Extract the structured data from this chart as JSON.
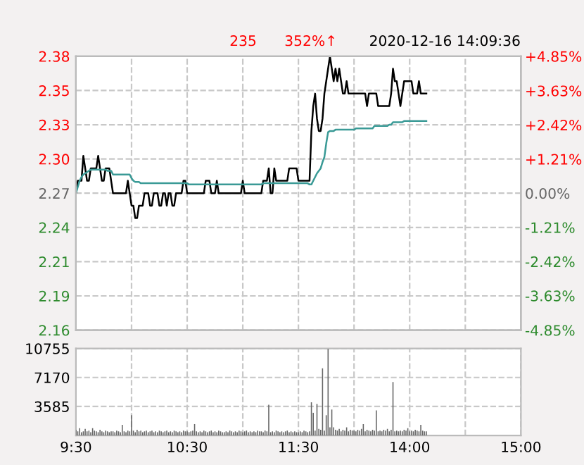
{
  "chart_data": [
    {
      "type": "line",
      "annotations": [
        "235",
        "352%↑",
        "2020-12-16 14:09:36"
      ],
      "categories": [
        null,
        null,
        null,
        null,
        null,
        null,
        null,
        null,
        null,
        null,
        null,
        null,
        null,
        null,
        null,
        null,
        null,
        null,
        null,
        null,
        null,
        null,
        null,
        null,
        null,
        null,
        null,
        null,
        null,
        null,
        null,
        null,
        null,
        null,
        null,
        null,
        null,
        null,
        null,
        null,
        null,
        null,
        null,
        null,
        null,
        null,
        null,
        null,
        null,
        null,
        null,
        null,
        null,
        null,
        null,
        null,
        null,
        null,
        null,
        null,
        null,
        null,
        null,
        null,
        null,
        null,
        null,
        null,
        null,
        null,
        null,
        null,
        null,
        null,
        null,
        null,
        null,
        null,
        null,
        null,
        null,
        null,
        null,
        null,
        null,
        null,
        null,
        null,
        null,
        null,
        null,
        null,
        null,
        null,
        null,
        null,
        null,
        null,
        null,
        null,
        null,
        null,
        null,
        null,
        null,
        null,
        null,
        null,
        null,
        null,
        null,
        null,
        null,
        null,
        null,
        null,
        null,
        null,
        null,
        null,
        null,
        null,
        null,
        null,
        null,
        null,
        null,
        null,
        null,
        null,
        null,
        null,
        null,
        null,
        null,
        null,
        null,
        null,
        null,
        null,
        null,
        null,
        null,
        null,
        null,
        null,
        null,
        null,
        null,
        null,
        null,
        null,
        null,
        null,
        null,
        null,
        null,
        null,
        null,
        null,
        null,
        null,
        null,
        null,
        null,
        null,
        null,
        null,
        null,
        null,
        null,
        null,
        null,
        null,
        null,
        null,
        null,
        null,
        null,
        null,
        null,
        null,
        null,
        null,
        null,
        null,
        null,
        null,
        null,
        null,
        null,
        null,
        null,
        null,
        null,
        null,
        null,
        null,
        null,
        null,
        null,
        null,
        null,
        null,
        null,
        null,
        null,
        null,
        null,
        null,
        null,
        null,
        null,
        null,
        null,
        null,
        null,
        null,
        null,
        null,
        null,
        null,
        null,
        null,
        null,
        null,
        null,
        null,
        null,
        null,
        null,
        null,
        null,
        null,
        null,
        null,
        null,
        null,
        null,
        null,
        null
      ],
      "ylim": [
        2.16,
        2.38
      ],
      "yticks": [
        2.16,
        {
          "value": 2.1875,
          "label": "2.19"
        },
        {
          "value": 2.215,
          "label": "2.21"
        },
        {
          "value": 2.2425,
          "label": "2.24"
        },
        2.27,
        {
          "value": 2.2975,
          "label": "2.30"
        },
        {
          "value": 2.325,
          "label": "2.33"
        },
        {
          "value": 2.3525,
          "label": "2.35"
        },
        2.38
      ],
      "y2lim": [
        -4.85,
        4.85
      ],
      "y2ticks": [
        {
          "value": -4.85,
          "label": "-4.85%"
        },
        {
          "value": -3.63,
          "label": "-3.63%"
        },
        {
          "value": -2.42,
          "label": "-2.42%"
        },
        {
          "value": -1.21,
          "label": "-1.21%"
        },
        {
          "value": 0,
          "label": "0.00%"
        },
        {
          "value": 1.21,
          "label": "+1.21%"
        },
        {
          "value": 2.42,
          "label": "+2.42%"
        },
        {
          "value": 3.63,
          "label": "+3.63%"
        },
        {
          "value": 4.85,
          "label": "+4.85%"
        }
      ],
      "grid": true,
      "tick_labels": "y",
      "line_style": "solid",
      "series": [
        {
          "color": "#000000",
          "values": [
            2.27,
            2.28,
            2.28,
            2.28,
            2.3,
            2.29,
            2.28,
            2.28,
            2.29,
            2.29,
            2.29,
            2.29,
            2.3,
            2.29,
            2.28,
            2.28,
            2.29,
            2.29,
            2.29,
            2.28,
            2.27,
            2.27,
            2.27,
            2.27,
            2.27,
            2.27,
            2.27,
            2.27,
            2.28,
            2.27,
            2.26,
            2.26,
            2.25,
            2.25,
            2.26,
            2.26,
            2.26,
            2.27,
            2.27,
            2.27,
            2.26,
            2.26,
            2.27,
            2.27,
            2.27,
            2.26,
            2.26,
            2.27,
            2.27,
            2.26,
            2.27,
            2.27,
            2.26,
            2.26,
            2.27,
            2.27,
            2.27,
            2.27,
            2.28,
            2.28,
            2.27,
            2.27,
            2.27,
            2.27,
            2.27,
            2.27,
            2.27,
            2.27,
            2.27,
            2.27,
            2.28,
            2.28,
            2.28,
            2.27,
            2.27,
            2.27,
            2.28,
            2.27,
            2.27,
            2.27,
            2.27,
            2.27,
            2.27,
            2.27,
            2.27,
            2.27,
            2.27,
            2.27,
            2.27,
            2.27,
            2.28,
            2.27,
            2.27,
            2.27,
            2.27,
            2.27,
            2.27,
            2.27,
            2.27,
            2.27,
            2.27,
            2.28,
            2.28,
            2.28,
            2.29,
            2.27,
            2.27,
            2.29,
            2.28,
            2.28,
            2.28,
            2.28,
            2.28,
            2.28,
            2.28,
            2.29,
            2.29,
            2.29,
            2.29,
            2.29,
            2.28,
            2.28,
            2.28,
            2.28,
            2.28,
            2.28,
            2.28,
            2.32,
            2.34,
            2.35,
            2.33,
            2.32,
            2.32,
            2.33,
            2.35,
            2.36,
            2.37,
            2.38,
            2.37,
            2.36,
            2.37,
            2.36,
            2.37,
            2.36,
            2.35,
            2.35,
            2.36,
            2.35,
            2.35,
            2.35,
            2.35,
            2.35,
            2.35,
            2.35,
            2.35,
            2.35,
            2.35,
            2.34,
            2.35,
            2.35,
            2.35,
            2.35,
            2.35,
            2.34,
            2.34,
            2.34,
            2.34,
            2.34,
            2.34,
            2.34,
            2.35,
            2.37,
            2.36,
            2.36,
            2.35,
            2.34,
            2.35,
            2.36,
            2.36,
            2.36,
            2.36,
            2.36,
            2.35,
            2.35,
            2.35,
            2.36,
            2.35,
            2.35,
            2.35,
            2.35,
            null,
            null,
            null,
            null,
            null,
            null,
            null,
            null,
            null,
            null,
            null,
            null,
            null,
            null,
            null,
            null,
            null,
            null,
            null,
            null,
            null,
            null,
            null,
            null,
            null,
            null,
            null,
            null,
            null,
            null,
            null,
            null,
            null,
            null,
            null,
            null,
            null,
            null,
            null,
            null,
            null,
            null,
            null,
            null,
            null,
            null,
            null,
            null,
            null,
            null,
            null
          ]
        },
        {
          "color": "#3a9a96",
          "values": [
            2.27,
            2.275,
            2.28,
            2.283,
            2.285,
            2.286,
            2.287,
            2.288,
            2.289,
            2.289,
            2.289,
            2.289,
            2.289,
            2.289,
            2.289,
            2.289,
            2.289,
            2.288,
            2.288,
            2.288,
            2.285,
            2.285,
            2.285,
            2.285,
            2.285,
            2.285,
            2.285,
            2.285,
            2.285,
            2.285,
            2.282,
            2.28,
            2.279,
            2.279,
            2.279,
            2.278,
            2.278,
            2.278,
            2.278,
            2.278,
            2.278,
            2.278,
            2.278,
            2.278,
            2.278,
            2.278,
            2.278,
            2.278,
            2.278,
            2.278,
            2.278,
            2.278,
            2.278,
            2.278,
            2.278,
            2.278,
            2.278,
            2.278,
            2.278,
            2.278,
            2.278,
            2.277,
            2.277,
            2.277,
            2.277,
            2.277,
            2.277,
            2.277,
            2.277,
            2.277,
            2.277,
            2.277,
            2.277,
            2.277,
            2.277,
            2.277,
            2.277,
            2.277,
            2.277,
            2.277,
            2.277,
            2.277,
            2.277,
            2.277,
            2.277,
            2.277,
            2.277,
            2.277,
            2.277,
            2.277,
            2.277,
            2.277,
            2.277,
            2.277,
            2.277,
            2.277,
            2.277,
            2.277,
            2.277,
            2.277,
            2.277,
            2.278,
            2.278,
            2.278,
            2.278,
            2.278,
            2.278,
            2.278,
            2.278,
            2.278,
            2.278,
            2.278,
            2.278,
            2.278,
            2.278,
            2.278,
            2.278,
            2.278,
            2.278,
            2.278,
            2.278,
            2.278,
            2.278,
            2.278,
            2.278,
            2.278,
            2.277,
            2.277,
            2.28,
            2.283,
            2.286,
            2.288,
            2.29,
            2.295,
            2.299,
            2.31,
            2.319,
            2.32,
            2.32,
            2.32,
            2.321,
            2.321,
            2.321,
            2.321,
            2.321,
            2.321,
            2.321,
            2.321,
            2.321,
            2.321,
            2.321,
            2.322,
            2.322,
            2.322,
            2.322,
            2.322,
            2.322,
            2.322,
            2.322,
            2.322,
            2.322,
            2.324,
            2.324,
            2.324,
            2.324,
            2.324,
            2.324,
            2.324,
            2.324,
            2.325,
            2.325,
            2.327,
            2.327,
            2.327,
            2.327,
            2.327,
            2.327,
            2.328,
            2.328,
            2.328,
            2.328,
            2.328,
            2.328,
            2.328,
            2.328,
            2.328,
            2.328,
            2.328,
            2.328,
            2.328,
            null,
            null,
            null,
            null,
            null,
            null,
            null,
            null,
            null,
            null,
            null,
            null,
            null,
            null,
            null,
            null,
            null,
            null,
            null,
            null,
            null,
            null,
            null,
            null,
            null,
            null,
            null,
            null,
            null,
            null,
            null,
            null,
            null,
            null,
            null,
            null,
            null,
            null,
            null,
            null,
            null,
            null,
            null,
            null,
            null,
            null,
            null,
            null,
            null,
            null,
            null
          ]
        }
      ]
    },
    {
      "type": "bar",
      "categories": [
        "9:30",
        null,
        null,
        null,
        null,
        null,
        null,
        null,
        null,
        null,
        null,
        null,
        null,
        null,
        null,
        null,
        null,
        null,
        null,
        null,
        null,
        null,
        null,
        null,
        null,
        null,
        null,
        null,
        null,
        null,
        null,
        null,
        null,
        null,
        null,
        null,
        null,
        null,
        null,
        null,
        null,
        null,
        null,
        null,
        null,
        null,
        null,
        null,
        null,
        null,
        null,
        null,
        null,
        null,
        null,
        null,
        null,
        null,
        null,
        null,
        "10:30",
        null,
        null,
        null,
        null,
        null,
        null,
        null,
        null,
        null,
        null,
        null,
        null,
        null,
        null,
        null,
        null,
        null,
        null,
        null,
        null,
        null,
        null,
        null,
        null,
        null,
        null,
        null,
        null,
        null,
        null,
        null,
        null,
        null,
        null,
        null,
        null,
        null,
        null,
        null,
        null,
        null,
        null,
        null,
        null,
        null,
        null,
        null,
        null,
        null,
        null,
        null,
        null,
        null,
        null,
        null,
        null,
        null,
        null,
        null,
        "11:30",
        null,
        null,
        null,
        null,
        null,
        null,
        null,
        null,
        null,
        null,
        null,
        null,
        null,
        null,
        null,
        null,
        null,
        null,
        null,
        null,
        null,
        null,
        null,
        null,
        null,
        null,
        null,
        null,
        null,
        null,
        null,
        null,
        null,
        null,
        null,
        null,
        null,
        null,
        null,
        null,
        null,
        null,
        null,
        null,
        null,
        null,
        null,
        null,
        null,
        null,
        null,
        null,
        null,
        null,
        null,
        null,
        null,
        null,
        null,
        "14:00",
        null,
        null,
        null,
        null,
        null,
        null,
        null,
        null,
        null,
        null,
        null,
        null,
        null,
        null,
        null,
        null,
        null,
        null,
        null,
        null,
        null,
        null,
        null,
        null,
        null,
        null,
        null,
        null,
        null,
        null,
        null,
        null,
        null,
        null,
        null,
        null,
        null,
        null,
        null,
        null,
        null,
        null,
        null,
        null,
        null,
        null,
        null,
        null,
        null,
        null,
        null,
        null,
        null,
        null,
        null,
        null,
        null,
        null,
        null,
        "15:00"
      ],
      "ylim": [
        0,
        10755
      ],
      "yticks": [
        3585,
        7170,
        10755
      ],
      "grid": true,
      "series": [
        {
          "color": "#666666",
          "values": [
            700,
            500,
            900,
            400,
            500,
            800,
            500,
            600,
            400,
            900,
            600,
            500,
            400,
            700,
            500,
            400,
            600,
            500,
            400,
            500,
            500,
            400,
            600,
            500,
            400,
            1300,
            500,
            400,
            600,
            500,
            2500,
            600,
            400,
            700,
            500,
            600,
            400,
            500,
            600,
            400,
            500,
            600,
            400,
            500,
            400,
            600,
            500,
            400,
            500,
            600,
            400,
            500,
            400,
            600,
            500,
            400,
            500,
            400,
            600,
            500,
            500,
            400,
            500,
            600,
            1400,
            500,
            400,
            500,
            400,
            600,
            500,
            400,
            500,
            600,
            400,
            500,
            400,
            600,
            500,
            400,
            400,
            500,
            400,
            600,
            500,
            400,
            500,
            400,
            600,
            500,
            400,
            500,
            600,
            400,
            500,
            400,
            500,
            400,
            600,
            500,
            500,
            400,
            600,
            500,
            3800,
            400,
            500,
            400,
            600,
            500,
            400,
            500,
            400,
            500,
            600,
            400,
            500,
            400,
            500,
            400,
            400,
            500,
            400,
            600,
            500,
            400,
            500,
            4100,
            2800,
            600,
            3900,
            800,
            700,
            8300,
            600,
            2500,
            10700,
            1000,
            3200,
            1000,
            700,
            600,
            800,
            500,
            700,
            600,
            1000,
            500,
            700,
            600,
            600,
            500,
            700,
            600,
            800,
            1400,
            500,
            700,
            600,
            500,
            700,
            600,
            3100,
            500,
            600,
            500,
            700,
            600,
            800,
            500,
            700,
            6600,
            500,
            600,
            500,
            600,
            500,
            700,
            600,
            900,
            500,
            600,
            500,
            700,
            600,
            500,
            1300,
            600,
            500,
            500,
            null,
            null,
            null,
            null,
            null,
            null,
            null,
            null,
            null,
            null,
            null,
            null,
            null,
            null,
            null,
            null,
            null,
            null,
            null,
            null,
            null,
            null,
            null,
            null,
            null,
            null,
            null,
            null,
            null,
            null,
            null,
            null,
            null,
            null,
            null,
            null,
            null,
            null,
            null,
            null,
            null,
            null,
            null,
            null,
            null,
            null,
            null,
            null,
            null,
            null,
            null
          ]
        }
      ]
    }
  ]
}
